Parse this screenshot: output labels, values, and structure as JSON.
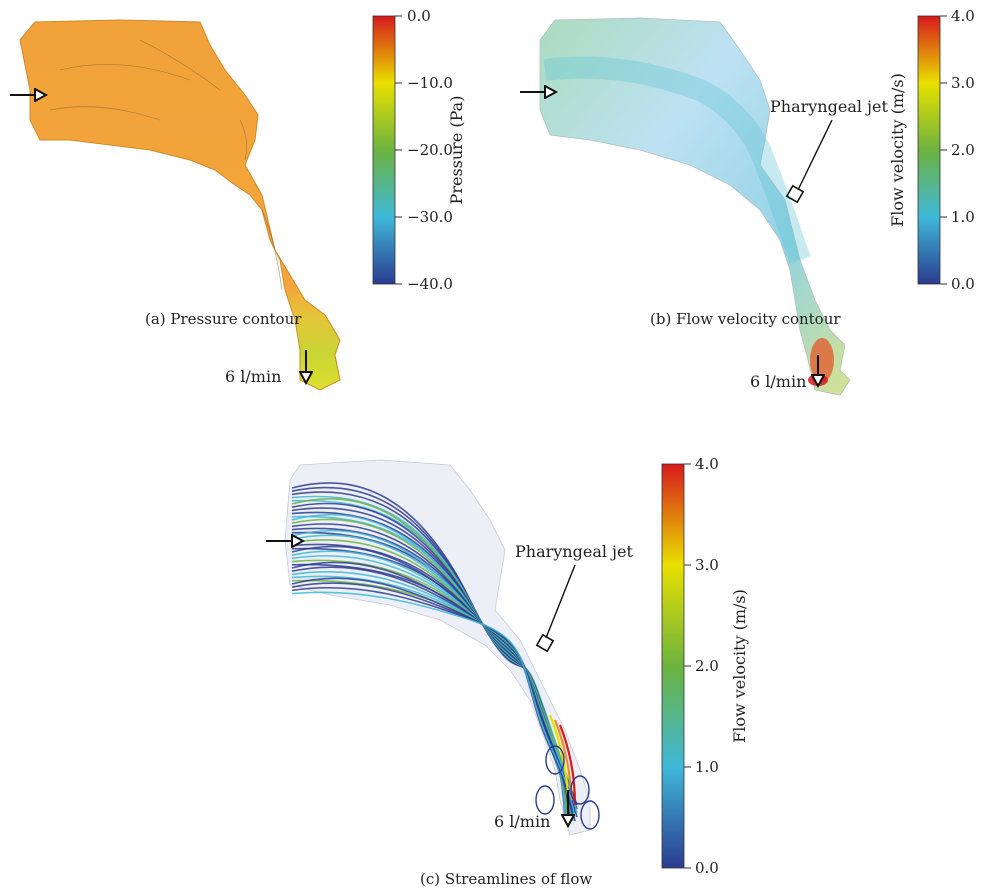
{
  "panel_a": {
    "caption": "(a)  Pressure contour",
    "flow_rate": "6 l/min",
    "colorbar": {
      "label": "Pressure (Pa)",
      "ticks": [
        "0.0",
        "−10.0",
        "−20.0",
        "−30.0",
        "−40.0"
      ]
    }
  },
  "panel_b": {
    "caption": "(b) Flow velocity contour",
    "flow_rate": "6 l/min",
    "annotation": "Pharyngeal jet",
    "colorbar": {
      "label": "Flow velocity (m/s)",
      "ticks": [
        "4.0",
        "3.0",
        "2.0",
        "1.0",
        "0.0"
      ]
    }
  },
  "panel_c": {
    "caption": "(c)  Streamlines of flow",
    "flow_rate": "6 l/min",
    "annotation": "Pharyngeal jet",
    "colorbar": {
      "label": "Flow velocity (m/s)",
      "ticks": [
        "4.0",
        "3.0",
        "2.0",
        "1.0",
        "0.0"
      ]
    }
  },
  "colors": {
    "jet_red": "#d7191c",
    "jet_orange": "#f08c28",
    "jet_yellow": "#e8e000",
    "jet_green": "#6db33f",
    "jet_cyan": "#3fb8d8",
    "jet_blue": "#2b3b8f",
    "pressure_fill": "#f2a23a"
  }
}
